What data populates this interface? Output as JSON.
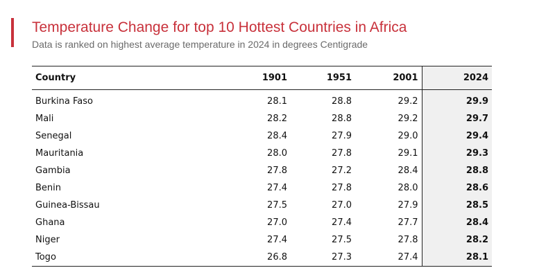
{
  "chart_data": {
    "type": "table",
    "title": "Temperature Change for top 10 Hottest Countries in Africa",
    "subtitle": "Data is ranked on highest average temperature in 2024 in degrees Centigrade",
    "columns": [
      "Country",
      "1901",
      "1951",
      "2001",
      "2024"
    ],
    "rows": [
      {
        "country": "Burkina Faso",
        "values": [
          "28.1",
          "28.8",
          "29.2",
          "29.9"
        ]
      },
      {
        "country": "Mali",
        "values": [
          "28.2",
          "28.8",
          "29.2",
          "29.7"
        ]
      },
      {
        "country": "Senegal",
        "values": [
          "28.4",
          "27.9",
          "29.0",
          "29.4"
        ]
      },
      {
        "country": "Mauritania",
        "values": [
          "28.0",
          "27.8",
          "29.1",
          "29.3"
        ]
      },
      {
        "country": "Gambia",
        "values": [
          "27.8",
          "27.2",
          "28.4",
          "28.8"
        ]
      },
      {
        "country": "Benin",
        "values": [
          "27.4",
          "27.8",
          "28.0",
          "28.6"
        ]
      },
      {
        "country": "Guinea-Bissau",
        "values": [
          "27.5",
          "27.0",
          "27.9",
          "28.5"
        ]
      },
      {
        "country": "Ghana",
        "values": [
          "27.0",
          "27.4",
          "27.7",
          "28.4"
        ]
      },
      {
        "country": "Niger",
        "values": [
          "27.4",
          "27.5",
          "27.8",
          "28.2"
        ]
      },
      {
        "country": "Togo",
        "values": [
          "26.8",
          "27.3",
          "27.4",
          "28.1"
        ]
      }
    ]
  },
  "colors": {
    "title": "#c8313b",
    "accent_bar": "#c8313b",
    "subtitle": "#6a6a6a",
    "highlight_column": "#f0f0f0"
  }
}
